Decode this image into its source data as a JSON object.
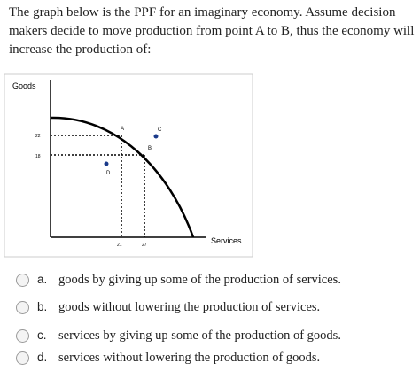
{
  "question": "The graph below is the PPF for an imaginary economy. Assume decision makers decide to move production from point A to B, thus the economy will increase the production of:",
  "figure": {
    "y_label": "Goods",
    "x_label": "Services",
    "y_ticks": [
      22,
      18
    ],
    "x_ticks": [
      21,
      27
    ],
    "points": [
      "A",
      "B",
      "C",
      "D"
    ]
  },
  "options": [
    {
      "letter": "a.",
      "text": "goods by giving up some of the production of services."
    },
    {
      "letter": "b.",
      "text": "goods without lowering the production of services."
    },
    {
      "letter": "c.",
      "text": "services by giving up some of the production of goods."
    },
    {
      "letter": "d.",
      "text": "services without lowering the production of goods."
    }
  ]
}
